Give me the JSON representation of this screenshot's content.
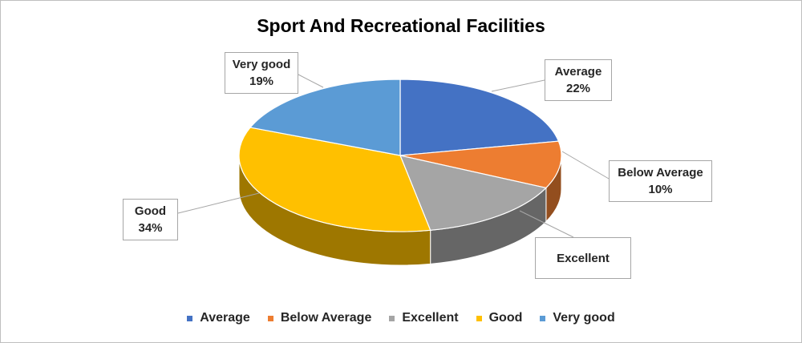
{
  "chart_data": {
    "type": "pie",
    "title": "Sport And Recreational Facilities",
    "categories": [
      "Average",
      "Below Average",
      "Excellent",
      "Good",
      "Very good"
    ],
    "values": [
      22,
      10,
      15,
      34,
      19
    ],
    "labels": [
      "Average\n22%",
      "Below Average\n10%",
      "Excellent",
      "Good\n34%",
      "Very good\n19%"
    ],
    "colors": [
      "#4472C4",
      "#ED7D31",
      "#A5A5A5",
      "#FFC000",
      "#5B9BD5"
    ],
    "legend_position": "bottom",
    "style": "3d"
  }
}
